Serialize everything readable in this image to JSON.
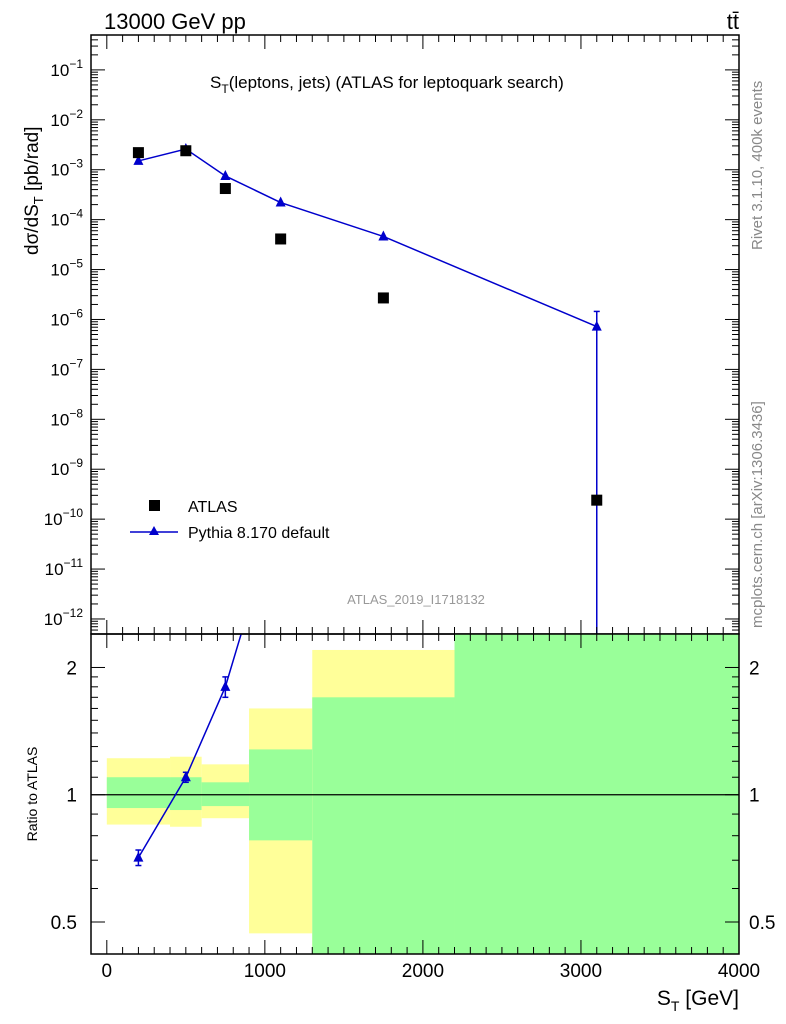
{
  "header": {
    "energy_label": "13000 GeV pp",
    "process_label": "tt̄"
  },
  "side_labels": {
    "rivet": "Rivet 3.1.10,  400k events",
    "mcplots": "mcplots.cern.ch [arXiv:1306.3436]"
  },
  "analysis_id": "ATLAS_2019_I1718132",
  "colors": {
    "mc": "#0000cc",
    "data": "#000000",
    "band_green": "#99ff99",
    "band_yellow": "#ffff99"
  },
  "chart_data": [
    {
      "type": "scatter",
      "title": "S_T(leptons, jets) (ATLAS for leptoquark search)",
      "title_main": "S",
      "title_sub": "T",
      "title_rest": "(leptons, jets) (ATLAS for leptoquark search)",
      "ylabel": "dσ/dS_T [pb/rad]",
      "ylabel_main": "dσ/dS",
      "ylabel_sub": "T",
      "ylabel_rest": " [pb/rad]",
      "yscale": "log",
      "ylim": [
        5e-13,
        0.5
      ],
      "xlim": [
        -100,
        4000
      ],
      "ytick_labels": [
        "10^{-12}",
        "10^{-11}",
        "10^{-10}",
        "10^{-9}",
        "10^{-8}",
        "10^{-7}",
        "10^{-6}",
        "10^{-5}",
        "10^{-4}",
        "10^{-3}",
        "10^{-2}",
        "10^{-1}"
      ],
      "ytick_base": "10",
      "ytick_exps": [
        "−12",
        "−11",
        "−10",
        "−9",
        "−8",
        "−7",
        "−6",
        "−5",
        "−4",
        "−3",
        "−2",
        "−1"
      ],
      "legend": {
        "placement": "bottom-left"
      },
      "series": [
        {
          "name": "ATLAS",
          "style": "markers",
          "x": [
            200,
            500,
            750,
            1100,
            1750,
            3100
          ],
          "y": [
            0.0022,
            0.0024,
            0.00042,
            4.1e-05,
            2.7e-06,
            2.4e-10
          ]
        },
        {
          "name": "Pythia 8.170 default",
          "style": "line+triangles",
          "x": [
            200,
            500,
            750,
            1100,
            1750,
            3100
          ],
          "y": [
            0.0015,
            0.0026,
            0.00075,
            0.00022,
            4.6e-05,
            7.2e-07
          ],
          "err_up": [
            null,
            null,
            null,
            null,
            null,
            1.45e-06
          ],
          "err_down": [
            null,
            null,
            null,
            null,
            null,
            1e-13
          ]
        }
      ]
    },
    {
      "type": "line",
      "ylabel": "Ratio to ATLAS",
      "xlabel": "S_T [GeV]",
      "xlabel_main": "S",
      "xlabel_sub": "T",
      "xlabel_rest": " [GeV]",
      "yscale": "log",
      "ylim": [
        0.42,
        2.4
      ],
      "xlim": [
        -100,
        4000
      ],
      "yticks": [
        0.5,
        1,
        2
      ],
      "ytick_labels": [
        "0.5",
        "1",
        "2"
      ],
      "xticks": [
        0,
        1000,
        2000,
        3000,
        4000
      ],
      "xtick_labels": [
        "0",
        "1000",
        "2000",
        "3000",
        "4000"
      ],
      "reference_line": 1,
      "bands": [
        {
          "x": [
            0,
            400
          ],
          "green": [
            0.93,
            1.1
          ],
          "yellow": [
            0.85,
            1.22
          ]
        },
        {
          "x": [
            400,
            600
          ],
          "green": [
            0.92,
            1.1
          ],
          "yellow": [
            0.84,
            1.23
          ]
        },
        {
          "x": [
            600,
            900
          ],
          "green": [
            0.94,
            1.07
          ],
          "yellow": [
            0.88,
            1.18
          ]
        },
        {
          "x": [
            900,
            1300
          ],
          "green": [
            0.78,
            1.28
          ],
          "yellow": [
            0.47,
            1.6
          ]
        },
        {
          "x": [
            1300,
            2200
          ],
          "green": [
            0.0,
            1.7
          ],
          "yellow": [
            0.0,
            2.2
          ]
        },
        {
          "x": [
            2200,
            4000
          ],
          "green": [
            0.0,
            2.4
          ],
          "yellow": [
            0.0,
            2.4
          ]
        }
      ],
      "series": [
        {
          "name": "Pythia 8.170 default",
          "x": [
            200,
            500,
            750,
            850
          ],
          "y": [
            0.71,
            1.1,
            1.8,
            2.4
          ],
          "err": [
            0.03,
            0.03,
            0.1,
            0
          ],
          "markers": [
            true,
            true,
            true,
            false
          ]
        }
      ]
    }
  ]
}
